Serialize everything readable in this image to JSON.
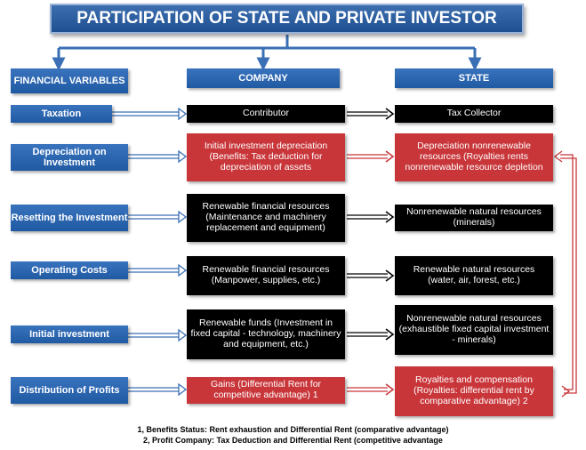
{
  "title": "PARTICIPATION OF STATE AND PRIVATE INVESTOR",
  "headers": {
    "financial": "FINANCIAL VARIABLES",
    "company": "COMPANY",
    "state": "STATE"
  },
  "rows": [
    {
      "label": "Taxation",
      "company": "Contributor",
      "state": "Tax Collector"
    },
    {
      "label": "Depreciation on Investment",
      "company": "Initial investment depreciation (Benefits: Tax deduction for depreciation of assets",
      "state": "Depreciation nonrenewable resources (Royalties rents nonrenewable resource depletion"
    },
    {
      "label": "Resetting the Investment",
      "company": "Renewable financial resources (Maintenance and machinery replacement and equipment)",
      "state": "Nonrenewable natural resources (minerals)"
    },
    {
      "label": "Operating Costs",
      "company": "Renewable financial resources (Manpower, supplies, etc.)",
      "state": "Renewable natural resources (water, air, forest, etc.)"
    },
    {
      "label": "Initial investment",
      "company": "Renewable funds (Investment in fixed capital - technology, machinery and equipment, etc.)",
      "state": "Nonrenewable natural resources (exhaustible fixed capital investment - minerals)"
    },
    {
      "label": "Distribution of Profits",
      "company": "Gains (Differential Rent for competitive advantage) 1",
      "state": "Royalties and compensation (Royalties: differential rent by comparative advantage) 2"
    }
  ],
  "notes": [
    "1, Benefits Status: Rent exhaustion and Differential Rent (comparative advantage)",
    "2, Profit Company: Tax Deduction and Differential Rent (competitive advantage"
  ],
  "colors": {
    "blue": "#1f5aa3",
    "red": "#c8363a",
    "black": "#000000",
    "arrow_blue": "#3a6fb5"
  }
}
